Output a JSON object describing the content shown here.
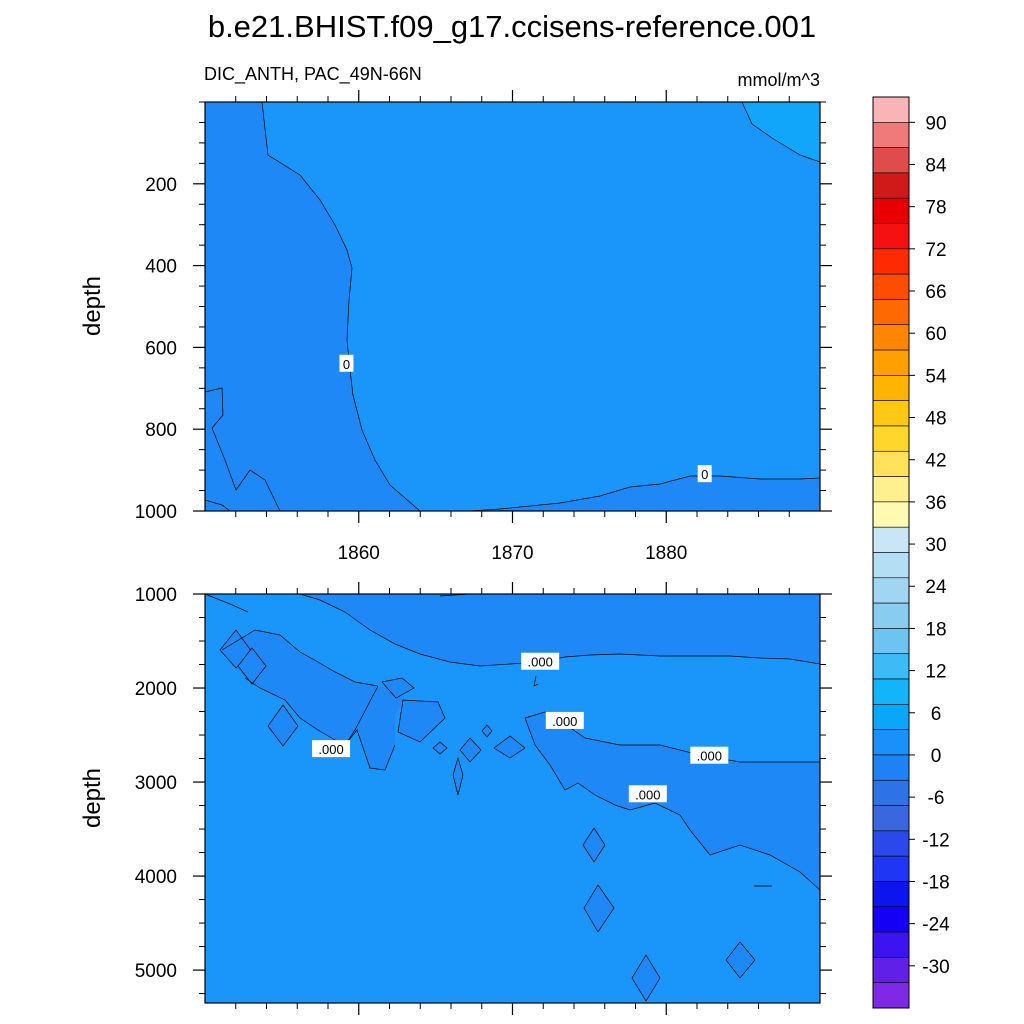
{
  "chart_data": {
    "type": "heatmap",
    "title": "b.e21.BHIST.f09_g17.ccisens-reference.001",
    "colorbar": {
      "labels": [
        "90",
        "84",
        "78",
        "72",
        "66",
        "60",
        "54",
        "48",
        "42",
        "36",
        "30",
        "24",
        "18",
        "12",
        "6",
        "0",
        "-6",
        "-12",
        "-18",
        "-24",
        "-30"
      ],
      "colors": [
        "#f9b5b5",
        "#f07a7a",
        "#e04c4c",
        "#d01a1a",
        "#e60000",
        "#f51111",
        "#ff2a00",
        "#ff4d00",
        "#ff6a00",
        "#ff8600",
        "#ffa000",
        "#ffb400",
        "#ffc812",
        "#ffd62a",
        "#ffe25a",
        "#fff08f",
        "#fffab0",
        "#c8e6f6",
        "#b4def4",
        "#a0d6f2",
        "#88ccf0",
        "#6ec4f0",
        "#3cbcf6",
        "#12b4fa",
        "#0aa6fa",
        "#1a90fa",
        "#1e82f5",
        "#2e72e8",
        "#3a66e0",
        "#2a48ec",
        "#2036f5",
        "#0c14f0",
        "#1400f4",
        "#3c14f0",
        "#6020e8",
        "#8028e8"
      ]
    },
    "top_panel": {
      "subtitle_left": "DIC_ANTH, PAC_49N-66N",
      "subtitle_right": "mmol/m^3",
      "ylabel": "depth",
      "ylim": [
        1000,
        0
      ],
      "yticks": [
        200,
        400,
        600,
        800,
        1000
      ],
      "xlim": [
        1850,
        1890
      ],
      "xticks": [
        1860,
        1870,
        1880
      ],
      "xtick_labels": [
        "1860",
        "1870",
        "1880"
      ],
      "contour_labels": [
        {
          "text": "0",
          "x": 1859.2,
          "y": 640
        },
        {
          "text": "0",
          "x": 1882.5,
          "y": 910
        }
      ]
    },
    "bottom_panel": {
      "ylabel": "depth",
      "ylim": [
        5350,
        1000
      ],
      "yticks": [
        1000,
        2000,
        3000,
        4000,
        5000
      ],
      "xlim": [
        1850,
        1890
      ],
      "xticks": [
        1860,
        1870,
        1880
      ],
      "contour_labels": [
        {
          "text": ".000",
          "x": 1871.8,
          "y": 1720
        },
        {
          "text": ".000",
          "x": 1873.4,
          "y": 2350
        },
        {
          "text": ".000",
          "x": 1858.2,
          "y": 2650
        },
        {
          "text": ".000",
          "x": 1882.8,
          "y": 2720
        },
        {
          "text": ".000",
          "x": 1878.8,
          "y": 3130
        }
      ]
    }
  }
}
